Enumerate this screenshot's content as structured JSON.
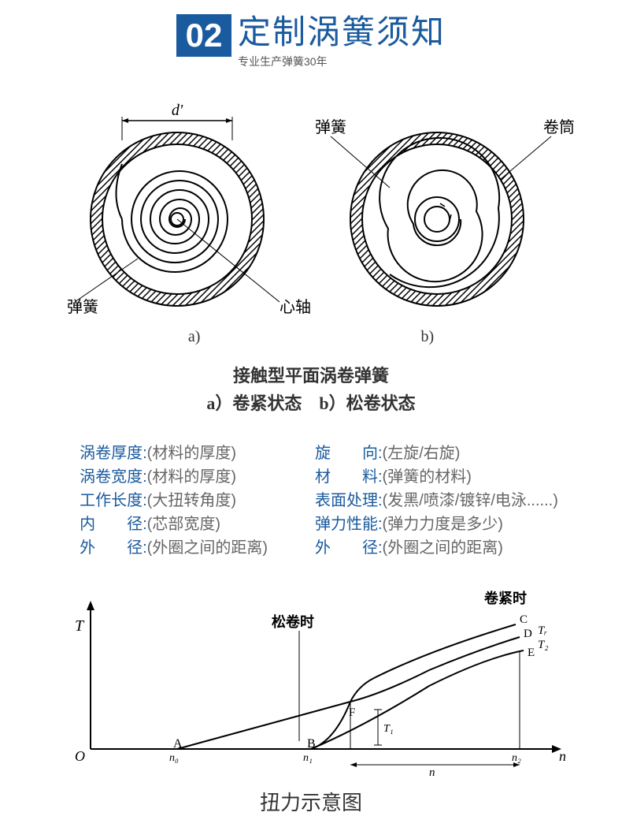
{
  "header": {
    "number": "02",
    "title": "定制涡簧须知",
    "subtitle": "专业生产弹簧30年",
    "number_bg": "#1a5a9e",
    "title_color": "#1a5a9e"
  },
  "diagram": {
    "label_a": "a)",
    "label_b": "b)",
    "d_prime": "d'",
    "spring_a": "弹簧",
    "axis": "心轴",
    "spring_b": "弹簧",
    "drum": "卷筒",
    "caption_line1": "接触型平面涡卷弹簧",
    "caption_line2": "a）卷紧状态　b）松卷状态"
  },
  "specs": {
    "left": [
      {
        "label": "涡卷厚度:",
        "value": "(材料的厚度)"
      },
      {
        "label": "涡卷宽度:",
        "value": "(材料的厚度)"
      },
      {
        "label": "工作长度:",
        "value": "(大扭转角度)"
      },
      {
        "label": "内　　径:",
        "value": "(芯部宽度)"
      },
      {
        "label": "外　　径:",
        "value": "(外圈之间的距离)"
      }
    ],
    "right": [
      {
        "label": "旋　　向:",
        "value": "(左旋/右旋)"
      },
      {
        "label": "材　　料:",
        "value": "(弹簧的材料)"
      },
      {
        "label": "表面处理:",
        "value": "(发黑/喷漆/镀锌/电泳......)"
      },
      {
        "label": "弹力性能:",
        "value": "(弹力力度是多少)"
      },
      {
        "label": "外　　径:",
        "value": "(外圈之间的距离)"
      }
    ],
    "label_color": "#1a5a9e",
    "value_color": "#666666"
  },
  "chart": {
    "y_axis": "T",
    "x_axis": "n",
    "origin": "O",
    "point_A": "A",
    "point_B": "B",
    "point_C": "C",
    "point_D": "D",
    "point_E": "E",
    "point_F": "F",
    "n_a": "n₀",
    "n_b": "n₁",
    "n_e": "n₂",
    "t_r": "Tᵣ",
    "t_2": "T₂",
    "t_1": "T₁",
    "label_loose": "松卷时",
    "label_tight": "卷紧时",
    "caption": "扭力示意图"
  }
}
